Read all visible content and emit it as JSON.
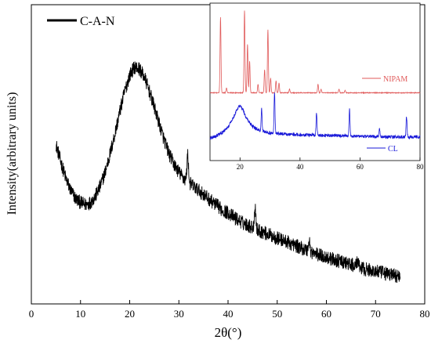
{
  "chart_data": [
    {
      "type": "line",
      "xlabel": "2θ(°)",
      "ylabel": "Intensity(arbitrary  units)",
      "xlim": [
        0,
        80
      ],
      "x_ticks": [
        0,
        10,
        20,
        30,
        40,
        50,
        60,
        70,
        80
      ],
      "grid": false,
      "legend_position": "top-left",
      "series": [
        {
          "name": "C-A-N",
          "color": "#000000",
          "noise": 0.35,
          "x": [
            5,
            6,
            7,
            8,
            9,
            10,
            11,
            12,
            13,
            14,
            15,
            16,
            17,
            18,
            19,
            20,
            21,
            22,
            23,
            24,
            25,
            26,
            27,
            28,
            29,
            30,
            31,
            32,
            33,
            34,
            35,
            36,
            37,
            38,
            39,
            40,
            41,
            42,
            43,
            44,
            45,
            46,
            47,
            48,
            49,
            50,
            52,
            54,
            56,
            58,
            60,
            62,
            64,
            66,
            68,
            70,
            72,
            74,
            75
          ],
          "y": [
            7.2,
            6.3,
            5.5,
            4.9,
            4.5,
            4.3,
            4.2,
            4.3,
            4.6,
            5.1,
            5.8,
            6.7,
            7.7,
            8.8,
            9.8,
            10.6,
            11.0,
            10.9,
            10.5,
            9.8,
            9.0,
            8.2,
            7.4,
            6.7,
            6.2,
            5.8,
            5.5,
            5.3,
            5.1,
            4.9,
            4.7,
            4.5,
            4.3,
            4.1,
            3.9,
            3.8,
            3.6,
            3.45,
            3.3,
            3.2,
            3.05,
            2.95,
            2.85,
            2.75,
            2.65,
            2.55,
            2.35,
            2.15,
            1.95,
            1.75,
            1.6,
            1.45,
            1.3,
            1.15,
            1.0,
            0.9,
            0.8,
            0.7,
            0.65
          ],
          "peaks": [
            [
              31.8,
              1.3
            ],
            [
              45.5,
              1.1
            ],
            [
              56.5,
              0.5
            ],
            [
              66.3,
              0.3
            ]
          ]
        }
      ]
    },
    {
      "type": "line",
      "xlim": [
        10,
        80
      ],
      "x_ticks": [
        20,
        40,
        60,
        80
      ],
      "grid": false,
      "legend_position": "right",
      "series": [
        {
          "name": "NIPAM",
          "color": "#e05a5a",
          "noise": 0.03,
          "baseline": 0.1,
          "peaks": [
            [
              13.5,
              6.2
            ],
            [
              15.5,
              0.4
            ],
            [
              21.5,
              6.8
            ],
            [
              22.5,
              4.0
            ],
            [
              23.2,
              2.6
            ],
            [
              26.0,
              0.7
            ],
            [
              28.2,
              1.9
            ],
            [
              29.3,
              5.2
            ],
            [
              30.2,
              1.2
            ],
            [
              32.0,
              1.0
            ],
            [
              33.0,
              0.8
            ],
            [
              36.5,
              0.3
            ],
            [
              46.0,
              0.7
            ],
            [
              47.0,
              0.3
            ],
            [
              53.0,
              0.3
            ],
            [
              55.0,
              0.2
            ]
          ]
        },
        {
          "name": "CL",
          "color": "#1a1ad9",
          "noise": 0.12,
          "x": [
            10,
            12,
            14,
            16,
            18,
            19,
            20,
            21,
            22,
            24,
            26,
            28,
            30,
            35,
            40,
            50,
            60,
            70,
            80
          ],
          "y": [
            0.2,
            0.35,
            0.6,
            1.0,
            1.8,
            2.3,
            2.6,
            2.3,
            1.7,
            1.1,
            0.8,
            0.7,
            0.6,
            0.5,
            0.45,
            0.4,
            0.35,
            0.3,
            0.3
          ],
          "peaks": [
            [
              27.2,
              1.6
            ],
            [
              31.5,
              3.0
            ],
            [
              45.5,
              1.6
            ],
            [
              56.5,
              1.9
            ],
            [
              66.5,
              0.6
            ],
            [
              75.5,
              1.5
            ]
          ]
        }
      ]
    }
  ]
}
